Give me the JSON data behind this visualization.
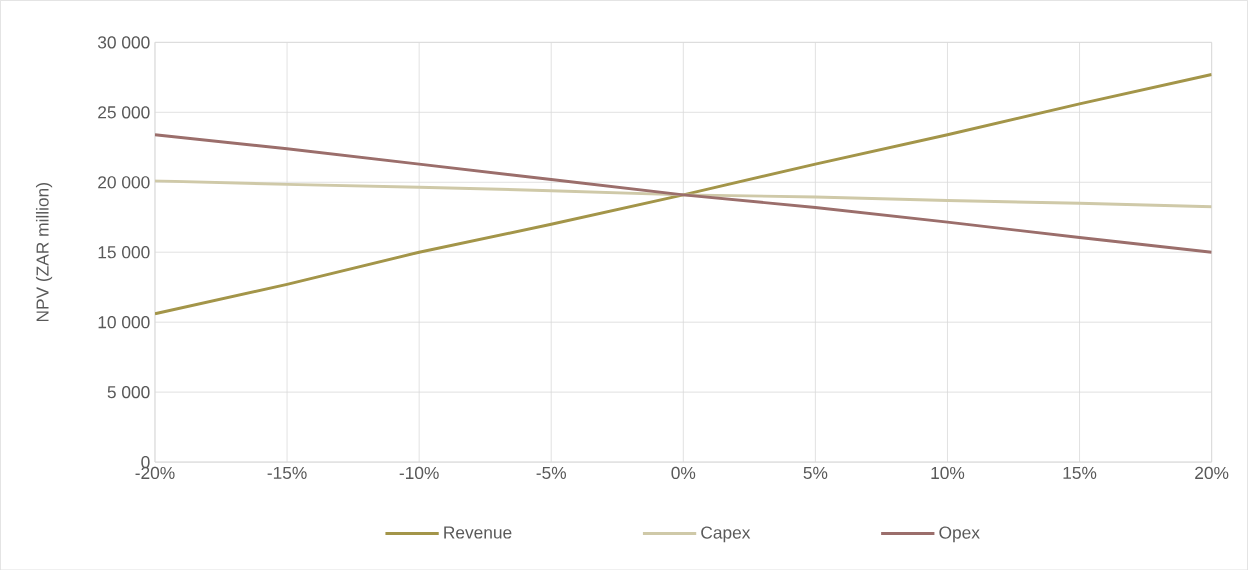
{
  "chart_data": {
    "type": "line",
    "ylabel": "NPV (ZAR million)",
    "x": [
      -20,
      -15,
      -10,
      -5,
      0,
      5,
      10,
      15,
      20
    ],
    "series": [
      {
        "name": "Revenue",
        "color": "#a39549",
        "values": [
          10600,
          12700,
          15000,
          17000,
          19100,
          21300,
          23400,
          25600,
          27700
        ]
      },
      {
        "name": "Capex",
        "color": "#cfc9a8",
        "values": [
          20100,
          19850,
          19650,
          19400,
          19100,
          18950,
          18700,
          18500,
          18250
        ]
      },
      {
        "name": "Opex",
        "color": "#9b6e6b",
        "values": [
          23400,
          22400,
          21300,
          20200,
          19100,
          18200,
          17150,
          16050,
          15000
        ]
      }
    ],
    "xlim": [
      -20,
      20
    ],
    "xticks": [
      {
        "value": -20,
        "label": "-20%"
      },
      {
        "value": -15,
        "label": "-15%"
      },
      {
        "value": -10,
        "label": "-10%"
      },
      {
        "value": -5,
        "label": "-5%"
      },
      {
        "value": 0,
        "label": "0%"
      },
      {
        "value": 5,
        "label": "5%"
      },
      {
        "value": 10,
        "label": "10%"
      },
      {
        "value": 15,
        "label": "15%"
      },
      {
        "value": 20,
        "label": "20%"
      }
    ],
    "ylim": [
      0,
      30000
    ],
    "yticks": [
      0,
      {
        "value": 5000,
        "label": "5 000"
      },
      {
        "value": 10000,
        "label": "10 000"
      },
      {
        "value": 15000,
        "label": "15 000"
      },
      {
        "value": 20000,
        "label": "20 000"
      },
      {
        "value": 25000,
        "label": "25 000"
      },
      {
        "value": 30000,
        "label": "30 000"
      }
    ],
    "grid": true,
    "legend": "bottom",
    "marker": "none",
    "line_style": "solid"
  }
}
